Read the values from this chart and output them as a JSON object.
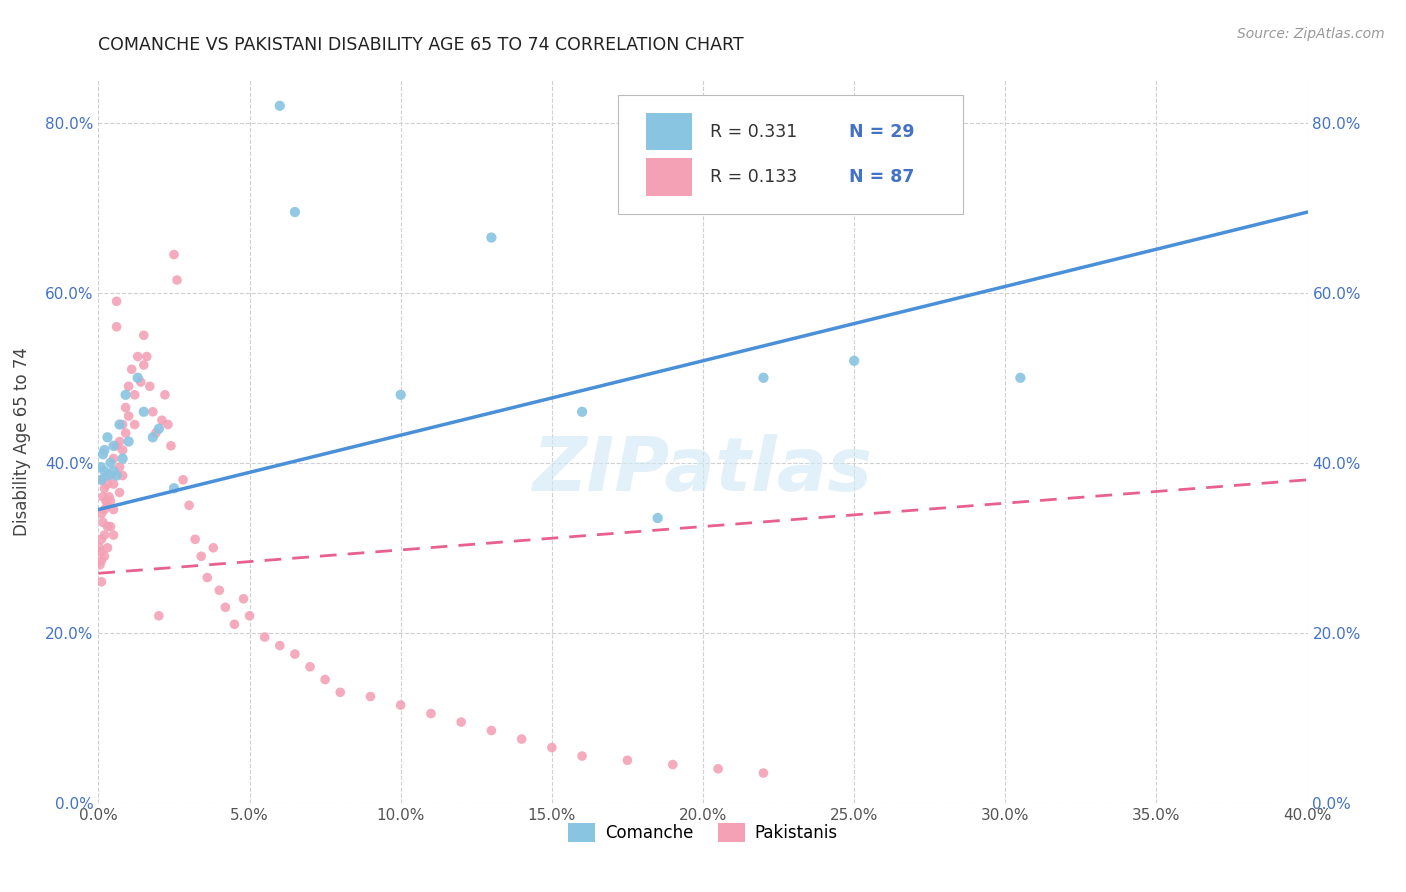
{
  "title": "COMANCHE VS PAKISTANI DISABILITY AGE 65 TO 74 CORRELATION CHART",
  "source": "Source: ZipAtlas.com",
  "ylabel": "Disability Age 65 to 74",
  "color_blue": "#89c4e1",
  "color_pink": "#f4a0b5",
  "color_blue_line": "#4a90d9",
  "color_pink_line": "#e86090",
  "watermark_text": "ZIPatlas",
  "legend_r1": "R = 0.331",
  "legend_n1": "N = 29",
  "legend_r2": "R = 0.133",
  "legend_n2": "N = 87",
  "comanche_x": [
    0.0008,
    0.001,
    0.0015,
    0.002,
    0.002,
    0.003,
    0.003,
    0.004,
    0.005,
    0.005,
    0.006,
    0.007,
    0.008,
    0.009,
    0.01,
    0.013,
    0.015,
    0.018,
    0.02,
    0.025,
    0.06,
    0.065,
    0.1,
    0.13,
    0.16,
    0.185,
    0.22,
    0.25,
    0.305
  ],
  "comanche_y": [
    0.395,
    0.38,
    0.41,
    0.39,
    0.415,
    0.385,
    0.43,
    0.4,
    0.39,
    0.42,
    0.385,
    0.445,
    0.405,
    0.48,
    0.425,
    0.5,
    0.46,
    0.43,
    0.44,
    0.37,
    0.82,
    0.695,
    0.48,
    0.665,
    0.46,
    0.335,
    0.5,
    0.52,
    0.5
  ],
  "pakistani_x": [
    0.0003,
    0.0005,
    0.0007,
    0.001,
    0.001,
    0.001,
    0.001,
    0.001,
    0.0015,
    0.0015,
    0.002,
    0.002,
    0.002,
    0.002,
    0.0025,
    0.003,
    0.003,
    0.003,
    0.003,
    0.0035,
    0.004,
    0.004,
    0.004,
    0.005,
    0.005,
    0.005,
    0.005,
    0.006,
    0.006,
    0.006,
    0.007,
    0.007,
    0.007,
    0.008,
    0.008,
    0.008,
    0.009,
    0.009,
    0.01,
    0.01,
    0.011,
    0.012,
    0.012,
    0.013,
    0.014,
    0.015,
    0.015,
    0.016,
    0.017,
    0.018,
    0.019,
    0.02,
    0.021,
    0.022,
    0.023,
    0.024,
    0.025,
    0.026,
    0.028,
    0.03,
    0.032,
    0.034,
    0.036,
    0.038,
    0.04,
    0.042,
    0.045,
    0.048,
    0.05,
    0.055,
    0.06,
    0.065,
    0.07,
    0.075,
    0.08,
    0.09,
    0.1,
    0.11,
    0.12,
    0.13,
    0.14,
    0.15,
    0.16,
    0.175,
    0.19,
    0.205,
    0.22
  ],
  "pakistani_y": [
    0.3,
    0.28,
    0.295,
    0.38,
    0.34,
    0.31,
    0.285,
    0.26,
    0.36,
    0.33,
    0.37,
    0.345,
    0.315,
    0.29,
    0.355,
    0.375,
    0.35,
    0.325,
    0.3,
    0.36,
    0.385,
    0.355,
    0.325,
    0.405,
    0.375,
    0.345,
    0.315,
    0.59,
    0.56,
    0.42,
    0.425,
    0.395,
    0.365,
    0.445,
    0.415,
    0.385,
    0.465,
    0.435,
    0.49,
    0.455,
    0.51,
    0.48,
    0.445,
    0.525,
    0.495,
    0.55,
    0.515,
    0.525,
    0.49,
    0.46,
    0.435,
    0.22,
    0.45,
    0.48,
    0.445,
    0.42,
    0.645,
    0.615,
    0.38,
    0.35,
    0.31,
    0.29,
    0.265,
    0.3,
    0.25,
    0.23,
    0.21,
    0.24,
    0.22,
    0.195,
    0.185,
    0.175,
    0.16,
    0.145,
    0.13,
    0.125,
    0.115,
    0.105,
    0.095,
    0.085,
    0.075,
    0.065,
    0.055,
    0.05,
    0.045,
    0.04,
    0.035
  ],
  "xlim": [
    0.0,
    0.4
  ],
  "ylim": [
    0.0,
    0.85
  ],
  "x_ticks": [
    0.0,
    0.05,
    0.1,
    0.15,
    0.2,
    0.25,
    0.3,
    0.35,
    0.4
  ],
  "y_ticks": [
    0.0,
    0.2,
    0.4,
    0.6,
    0.8
  ]
}
